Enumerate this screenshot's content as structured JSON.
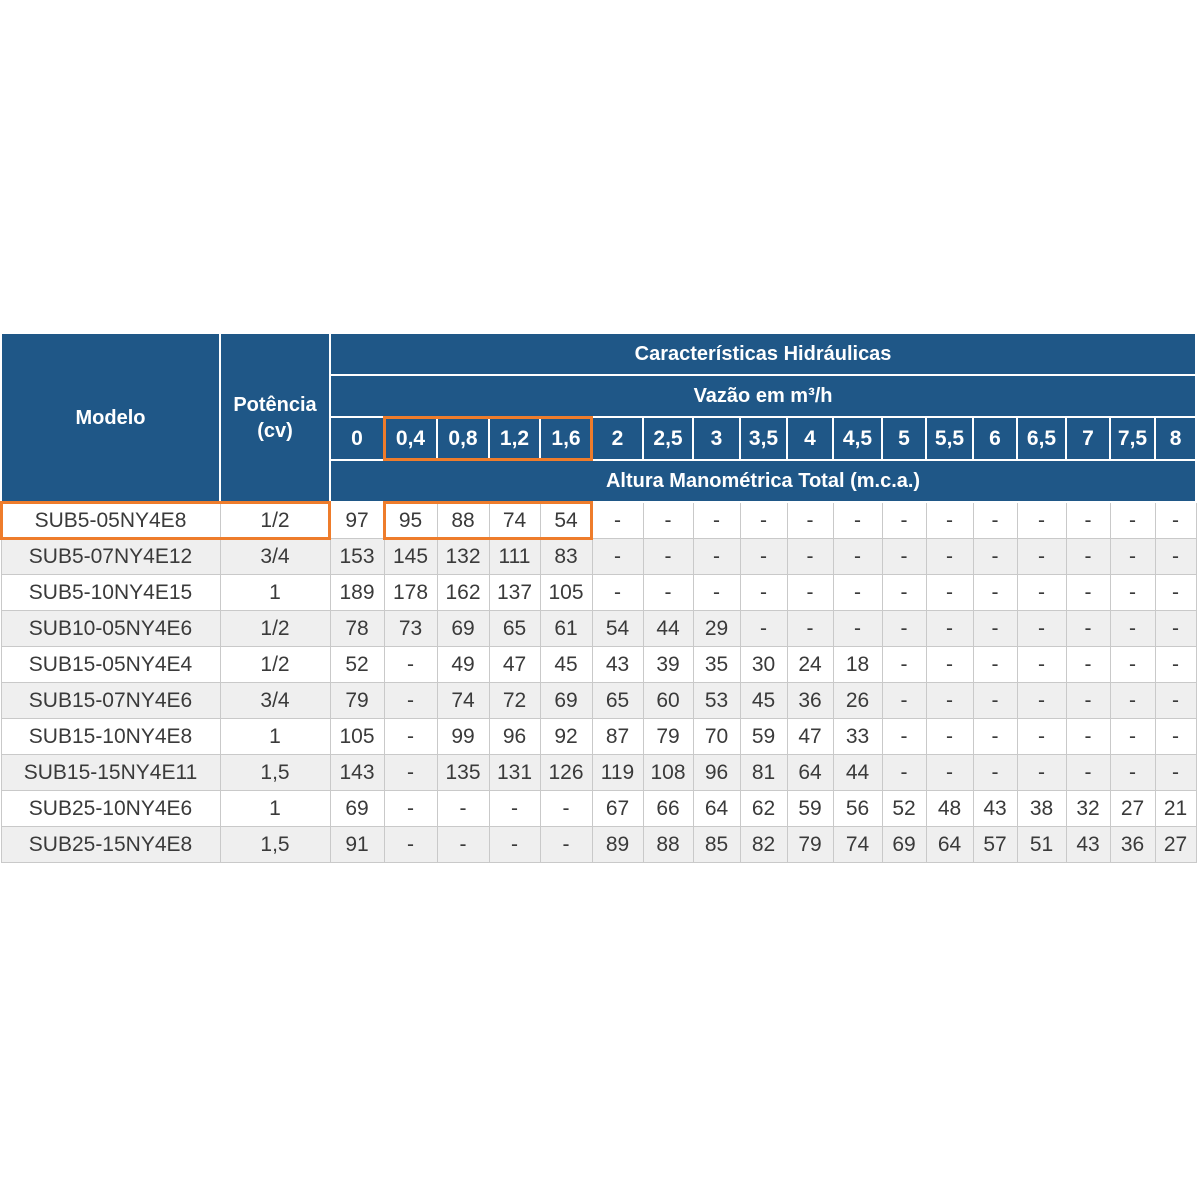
{
  "headers": {
    "model": "Modelo",
    "power_line1": "Potência",
    "power_line2": "(cv)",
    "hydraulic": "Características Hidráulicas",
    "flow": "Vazão em m³/h",
    "head": "Altura Manométrica Total (m.c.a.)"
  },
  "flows": [
    "0",
    "0,4",
    "0,8",
    "1,2",
    "1,6",
    "2",
    "2,5",
    "3",
    "3,5",
    "4",
    "4,5",
    "5",
    "5,5",
    "6",
    "6,5",
    "7",
    "7,5",
    "8"
  ],
  "rows": [
    {
      "model": "SUB5-05NY4E8",
      "power": "1/2",
      "values": [
        "97",
        "95",
        "88",
        "74",
        "54",
        "-",
        "-",
        "-",
        "-",
        "-",
        "-",
        "-",
        "-",
        "-",
        "-",
        "-",
        "-",
        "-"
      ]
    },
    {
      "model": "SUB5-07NY4E12",
      "power": "3/4",
      "values": [
        "153",
        "145",
        "132",
        "111",
        "83",
        "-",
        "-",
        "-",
        "-",
        "-",
        "-",
        "-",
        "-",
        "-",
        "-",
        "-",
        "-",
        "-"
      ]
    },
    {
      "model": "SUB5-10NY4E15",
      "power": "1",
      "values": [
        "189",
        "178",
        "162",
        "137",
        "105",
        "-",
        "-",
        "-",
        "-",
        "-",
        "-",
        "-",
        "-",
        "-",
        "-",
        "-",
        "-",
        "-"
      ]
    },
    {
      "model": "SUB10-05NY4E6",
      "power": "1/2",
      "values": [
        "78",
        "73",
        "69",
        "65",
        "61",
        "54",
        "44",
        "29",
        "-",
        "-",
        "-",
        "-",
        "-",
        "-",
        "-",
        "-",
        "-",
        "-"
      ]
    },
    {
      "model": "SUB15-05NY4E4",
      "power": "1/2",
      "values": [
        "52",
        "-",
        "49",
        "47",
        "45",
        "43",
        "39",
        "35",
        "30",
        "24",
        "18",
        "-",
        "-",
        "-",
        "-",
        "-",
        "-",
        "-"
      ]
    },
    {
      "model": "SUB15-07NY4E6",
      "power": "3/4",
      "values": [
        "79",
        "-",
        "74",
        "72",
        "69",
        "65",
        "60",
        "53",
        "45",
        "36",
        "26",
        "-",
        "-",
        "-",
        "-",
        "-",
        "-",
        "-"
      ]
    },
    {
      "model": "SUB15-10NY4E8",
      "power": "1",
      "values": [
        "105",
        "-",
        "99",
        "96",
        "92",
        "87",
        "79",
        "70",
        "59",
        "47",
        "33",
        "-",
        "-",
        "-",
        "-",
        "-",
        "-",
        "-"
      ]
    },
    {
      "model": "SUB15-15NY4E11",
      "power": "1,5",
      "values": [
        "143",
        "-",
        "135",
        "131",
        "126",
        "119",
        "108",
        "96",
        "81",
        "64",
        "44",
        "-",
        "-",
        "-",
        "-",
        "-",
        "-",
        "-"
      ]
    },
    {
      "model": "SUB25-10NY4E6",
      "power": "1",
      "values": [
        "69",
        "-",
        "-",
        "-",
        "-",
        "67",
        "66",
        "64",
        "62",
        "59",
        "56",
        "52",
        "48",
        "43",
        "38",
        "32",
        "27",
        "21"
      ]
    },
    {
      "model": "SUB25-15NY4E8",
      "power": "1,5",
      "values": [
        "91",
        "-",
        "-",
        "-",
        "-",
        "89",
        "88",
        "85",
        "82",
        "79",
        "74",
        "69",
        "64",
        "57",
        "51",
        "43",
        "36",
        "27"
      ]
    }
  ],
  "colors": {
    "header_bg": "#1f5787",
    "highlight": "#ee7c2b",
    "row_alt": "#efefef"
  }
}
